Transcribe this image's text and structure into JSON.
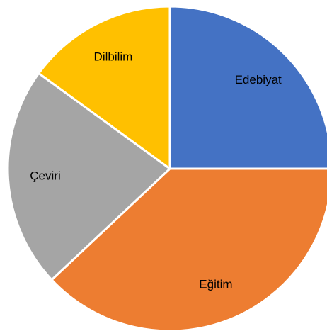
{
  "chart_data": {
    "type": "pie",
    "categories": [
      "Edebiyat",
      "Eğitim",
      "Çeviri",
      "Dilbilim"
    ],
    "values": [
      25,
      38,
      22,
      15
    ],
    "colors": [
      "#4472c4",
      "#ed7d31",
      "#a5a5a5",
      "#ffc000"
    ]
  }
}
